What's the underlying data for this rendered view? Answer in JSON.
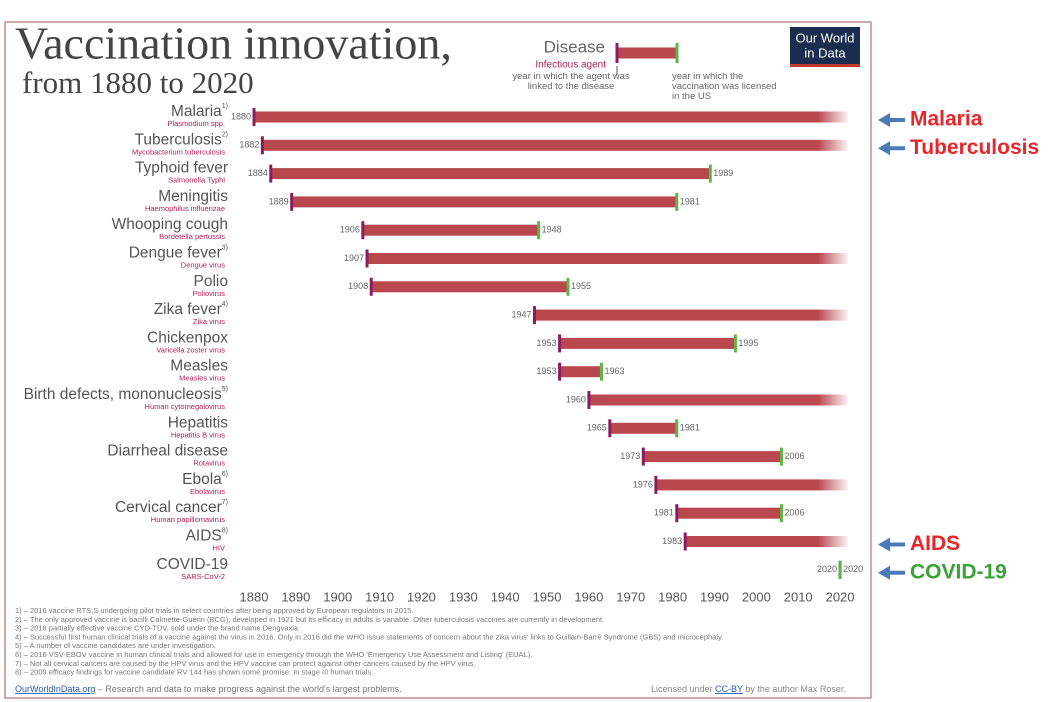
{
  "chart_data": {
    "type": "range",
    "title": "Vaccination innovation,",
    "subtitle": "from 1880 to 2020",
    "logo": [
      "Our World",
      "in Data"
    ],
    "legend": {
      "disease": "Disease",
      "agent": "Infectious agent"
    },
    "categories": [
      "Malaria",
      "Tuberculosis",
      "Typhoid fever",
      "Meningitis",
      "Whooping cough",
      "Dengue fever",
      "Polio",
      "Zika fever",
      "Chickenpox",
      "Measles",
      "Birth defects, mononucleosis",
      "Hepatitis",
      "Diarrheal disease",
      "Ebola",
      "Cervical cancer",
      "AIDS",
      "COVID-19"
    ],
    "agents": [
      "Plasmodium spp.",
      "Mycobacterium tuberculosis",
      "Salmonella Typhi",
      "Haemophilus influenzae",
      "Bordetella pertussis",
      "Dengue virus",
      "Poliovirus",
      "Zika virus",
      "Varicella zoster virus",
      "Measles virus",
      "Human cytomegalovirus",
      "Hepatitis B virus",
      "Rotavirus",
      "Ebolavirus",
      "Human papillomavirus",
      "HIV",
      "SARS-CoV-2"
    ],
    "footnote_marks": [
      "1)",
      "2)",
      null,
      null,
      null,
      "3)",
      null,
      "4)",
      null,
      null,
      "5)",
      null,
      null,
      "6)",
      "7)",
      "8)",
      null
    ],
    "bar_color": "#b9474e",
    "series": [
      {
        "name": "year in which the agent was linked to the disease",
        "color": "#8a1d5e",
        "values": [
          1880,
          1882,
          1884,
          1889,
          1906,
          1907,
          1908,
          1947,
          1953,
          1953,
          1960,
          1965,
          1973,
          1976,
          1981,
          1983,
          2020
        ]
      },
      {
        "name": "year in which the vaccination was licensed in the US",
        "color": "#5db547",
        "values": [
          null,
          null,
          1989,
          1981,
          1948,
          null,
          1955,
          null,
          1995,
          1963,
          null,
          1981,
          2006,
          null,
          2006,
          null,
          2020
        ]
      }
    ],
    "xlim": [
      1875,
      2025
    ],
    "xticks": [
      1880,
      1890,
      1900,
      1910,
      1920,
      1930,
      1940,
      1950,
      1960,
      1970,
      1980,
      1990,
      2000,
      2010,
      2020
    ],
    "grid": false,
    "footnotes": [
      "1) – 2016 vaccine RTS,S undergoing pilot trials in select countries after being approved by European regulators in 2015.",
      "2) – The only approved vaccine is bacilli Calmette-Guérin (BCG), developed in 1921 but its efficacy in adults is variable. Other tuberculosis vaccines are currently in development.",
      "3) – 2016 partially effective vaccine CYD-TDV, sold under the brand name Dengvaxia.",
      "4) – Successful first human clinical trials of a vaccine against the virus in 2016. Only in 2016 did the WHO issue statements of concern about the zika virus' links to Guillain-Barré Syndrome (GBS) and microcephaly.",
      "5) – A number of vaccine candidates are under investigation.",
      "6) – 2016 VSV-EBOV vaccine in human clinical trials and allowed for use in emergency through the WHO 'Emergency Use Assessment and Listing' (EUAL).",
      "7) – Not all cervical cancers are caused by the HPV virus and the HPV vaccine can protect against other cancers caused by the HPV virus.",
      "8) – 2009 efficacy findings for vaccine candidate RV 144 has shown some promise. In stage III human trials."
    ],
    "source": {
      "site": "OurWorldInData.org",
      "text": " – Research and data to make progress against the world's largest problems."
    },
    "license": {
      "prefix": "Licensed under ",
      "link": "CC-BY",
      "suffix": " by the author Max Roser."
    },
    "annotations": [
      {
        "text": "Malaria",
        "color": "#e8262a"
      },
      {
        "text": "Tuberculosis",
        "color": "#e8262a"
      },
      {
        "text": "AIDS",
        "color": "#e8262a"
      },
      {
        "text": "COVID-19",
        "color": "#3aa335"
      }
    ]
  }
}
